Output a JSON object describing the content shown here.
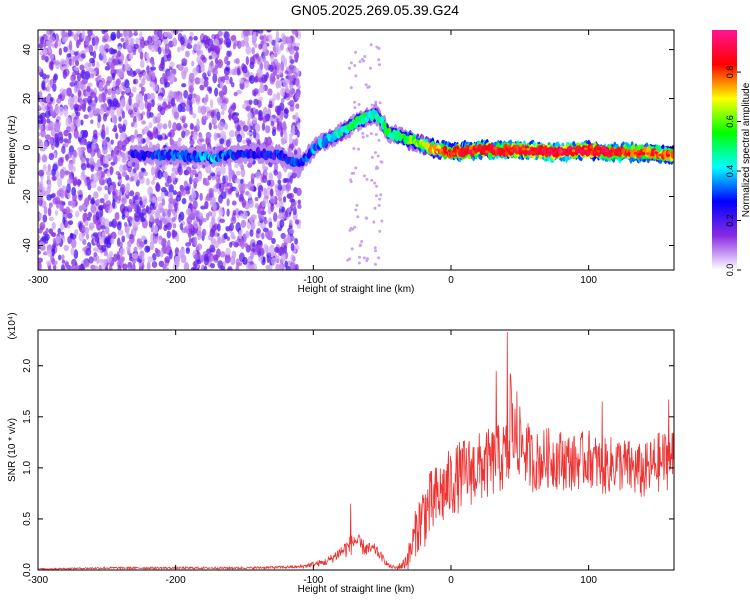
{
  "title": "GN05.2025.269.05.39.G24",
  "chart_data": [
    {
      "type": "heatmap",
      "title": "GN05.2025.269.05.39.G24",
      "xlabel": "Height of straight line (km)",
      "ylabel": "Frequency (Hz)",
      "xlim": [
        -300,
        162
      ],
      "ylim": [
        -50,
        48
      ],
      "xticks": [
        -300,
        -200,
        -100,
        0,
        100
      ],
      "yticks": [
        -40,
        -20,
        0,
        20,
        40
      ],
      "colorbar": {
        "label": "Normalized spectral amplitude",
        "range": [
          0,
          0.97
        ],
        "ticks": [
          "0.0",
          "0.2",
          "0.4",
          "0.6",
          "0.8"
        ],
        "colormap": [
          "#ffffff",
          "#8a2be2",
          "#0000ff",
          "#00ffff",
          "#00ff00",
          "#ffff00",
          "#ff0000",
          "#ff1493"
        ]
      },
      "ridge": {
        "x": [
          -232,
          -200,
          -170,
          -150,
          -125,
          -110,
          -95,
          -80,
          -70,
          -60,
          -55,
          -45,
          -35,
          -25,
          -15,
          0,
          20,
          50,
          80,
          100,
          120,
          140,
          162
        ],
        "y": [
          -3,
          -3,
          -4,
          -2,
          -3,
          -7,
          2,
          6,
          10,
          13,
          14,
          6,
          4,
          2,
          0,
          -2,
          -1,
          -1,
          -2,
          -1,
          -2,
          -2,
          -3
        ],
        "amplitude": [
          0.25,
          0.3,
          0.35,
          0.25,
          0.25,
          0.3,
          0.35,
          0.45,
          0.5,
          0.45,
          0.45,
          0.5,
          0.55,
          0.6,
          0.7,
          0.8,
          0.85,
          0.85,
          0.9,
          0.85,
          0.85,
          0.8,
          0.75
        ]
      },
      "noise_region": {
        "x_range": [
          -300,
          -110
        ],
        "y_range": [
          -50,
          48
        ],
        "amplitude": [
          0.05,
          0.22
        ]
      },
      "grid": false
    },
    {
      "type": "line",
      "xlabel": "Height of straight line (km)",
      "ylabel": "SNR (10 * v/v)",
      "y_multiplier": "(x10⁴)",
      "xlim": [
        -300,
        162
      ],
      "ylim": [
        0,
        2.35
      ],
      "xticks": [
        -300,
        -200,
        -100,
        0,
        100
      ],
      "yticks": [
        "0.0",
        "0.5",
        "1.0",
        "1.5",
        "2.0"
      ],
      "color": "#ee3333",
      "series": [
        {
          "x": [
            -300,
            -250,
            -200,
            -150,
            -110,
            -90,
            -80,
            -75,
            -72,
            -70,
            -65,
            -60,
            -55,
            -45,
            -40,
            -35,
            -30,
            -25,
            -20,
            -10,
            0,
            10,
            20,
            30,
            40,
            41,
            45,
            50,
            60,
            70,
            80,
            90,
            100,
            110,
            120,
            130,
            140,
            150,
            162
          ],
          "y": [
            0.01,
            0.02,
            0.02,
            0.02,
            0.03,
            0.08,
            0.18,
            0.22,
            0.25,
            0.3,
            0.23,
            0.2,
            0.2,
            0.04,
            0.02,
            0.05,
            0.15,
            0.4,
            0.55,
            0.7,
            0.85,
            0.95,
            1.0,
            1.05,
            1.12,
            2.33,
            1.3,
            1.25,
            1.05,
            1.1,
            1.08,
            1.05,
            1.1,
            1.0,
            1.05,
            1.0,
            0.95,
            1.05,
            1.1
          ],
          "spread": [
            0.005,
            0.01,
            0.01,
            0.01,
            0.015,
            0.04,
            0.07,
            0.1,
            0.1,
            0.1,
            0.08,
            0.07,
            0.06,
            0.02,
            0.02,
            0.05,
            0.15,
            0.25,
            0.35,
            0.35,
            0.35,
            0.35,
            0.35,
            0.35,
            0.35,
            0.35,
            0.35,
            0.35,
            0.3,
            0.3,
            0.3,
            0.28,
            0.28,
            0.28,
            0.28,
            0.28,
            0.28,
            0.3,
            0.3
          ]
        }
      ],
      "peaks": [
        {
          "x": -73,
          "y": 0.65
        },
        {
          "x": 41,
          "y": 2.33
        },
        {
          "x": 33,
          "y": 1.95
        },
        {
          "x": 48,
          "y": 1.75
        },
        {
          "x": 110,
          "y": 1.65
        },
        {
          "x": 158,
          "y": 1.67
        }
      ],
      "grid": false
    }
  ]
}
